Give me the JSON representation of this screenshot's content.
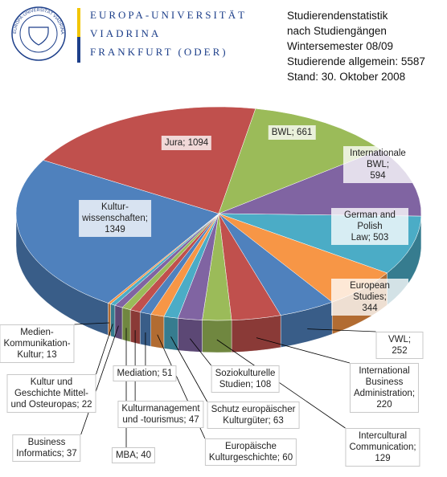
{
  "header": {
    "lines": [
      "EUROPA-UNIVERSITÄT",
      "VIADRINA",
      "FRANKFURT (ODER)"
    ],
    "logo_text": "EUROPA-UNIVERSITÄT VIADRINA"
  },
  "chart_data": {
    "type": "pie3d",
    "title": [
      "Studierendenstatistik",
      "nach Studiengängen",
      "Wintersemester 08/09",
      "Studierende allgemein: 5587",
      "Stand: 30. Oktober 2008"
    ],
    "values": [
      1094,
      661,
      594,
      503,
      344,
      252,
      220,
      129,
      108,
      63,
      60,
      51,
      47,
      40,
      37,
      22,
      13,
      1349
    ],
    "value_labels": [
      "Jura; 1094",
      "BWL; 661",
      "Internationale BWL;\n594",
      "German and Polish\nLaw; 503",
      "European Studies;\n344",
      "VWL; 252",
      "International\nBusiness\nAdministration; 220",
      "Intercultural\nCommunication;\n129",
      "Soziokulturelle\nStudien; 108",
      "Schutz europäischer\nKulturgüter; 63",
      "Europäische\nKulturgeschichte; 60",
      "Mediation; 51",
      "Kulturmanagement\nund -tourismus; 47",
      "MBA; 40",
      "Business\nInformatics; 37",
      "Kultur und\nGeschichte Mittel-\nund Osteuropas; 22",
      "Medien-\nKommunikation-\nKultur; 13",
      "Kultur-\nwissenschaften;\n1349"
    ],
    "colors": [
      "#c0504d",
      "#9bbb59",
      "#8064a2",
      "#4bacc6",
      "#f79646",
      "#4f81bd",
      "#c0504d",
      "#9bbb59",
      "#8064a2",
      "#4bacc6",
      "#f79646",
      "#4f81bd",
      "#c0504d",
      "#9bbb59",
      "#8064a2",
      "#4bacc6",
      "#f79646",
      "#4f81bd"
    ]
  }
}
